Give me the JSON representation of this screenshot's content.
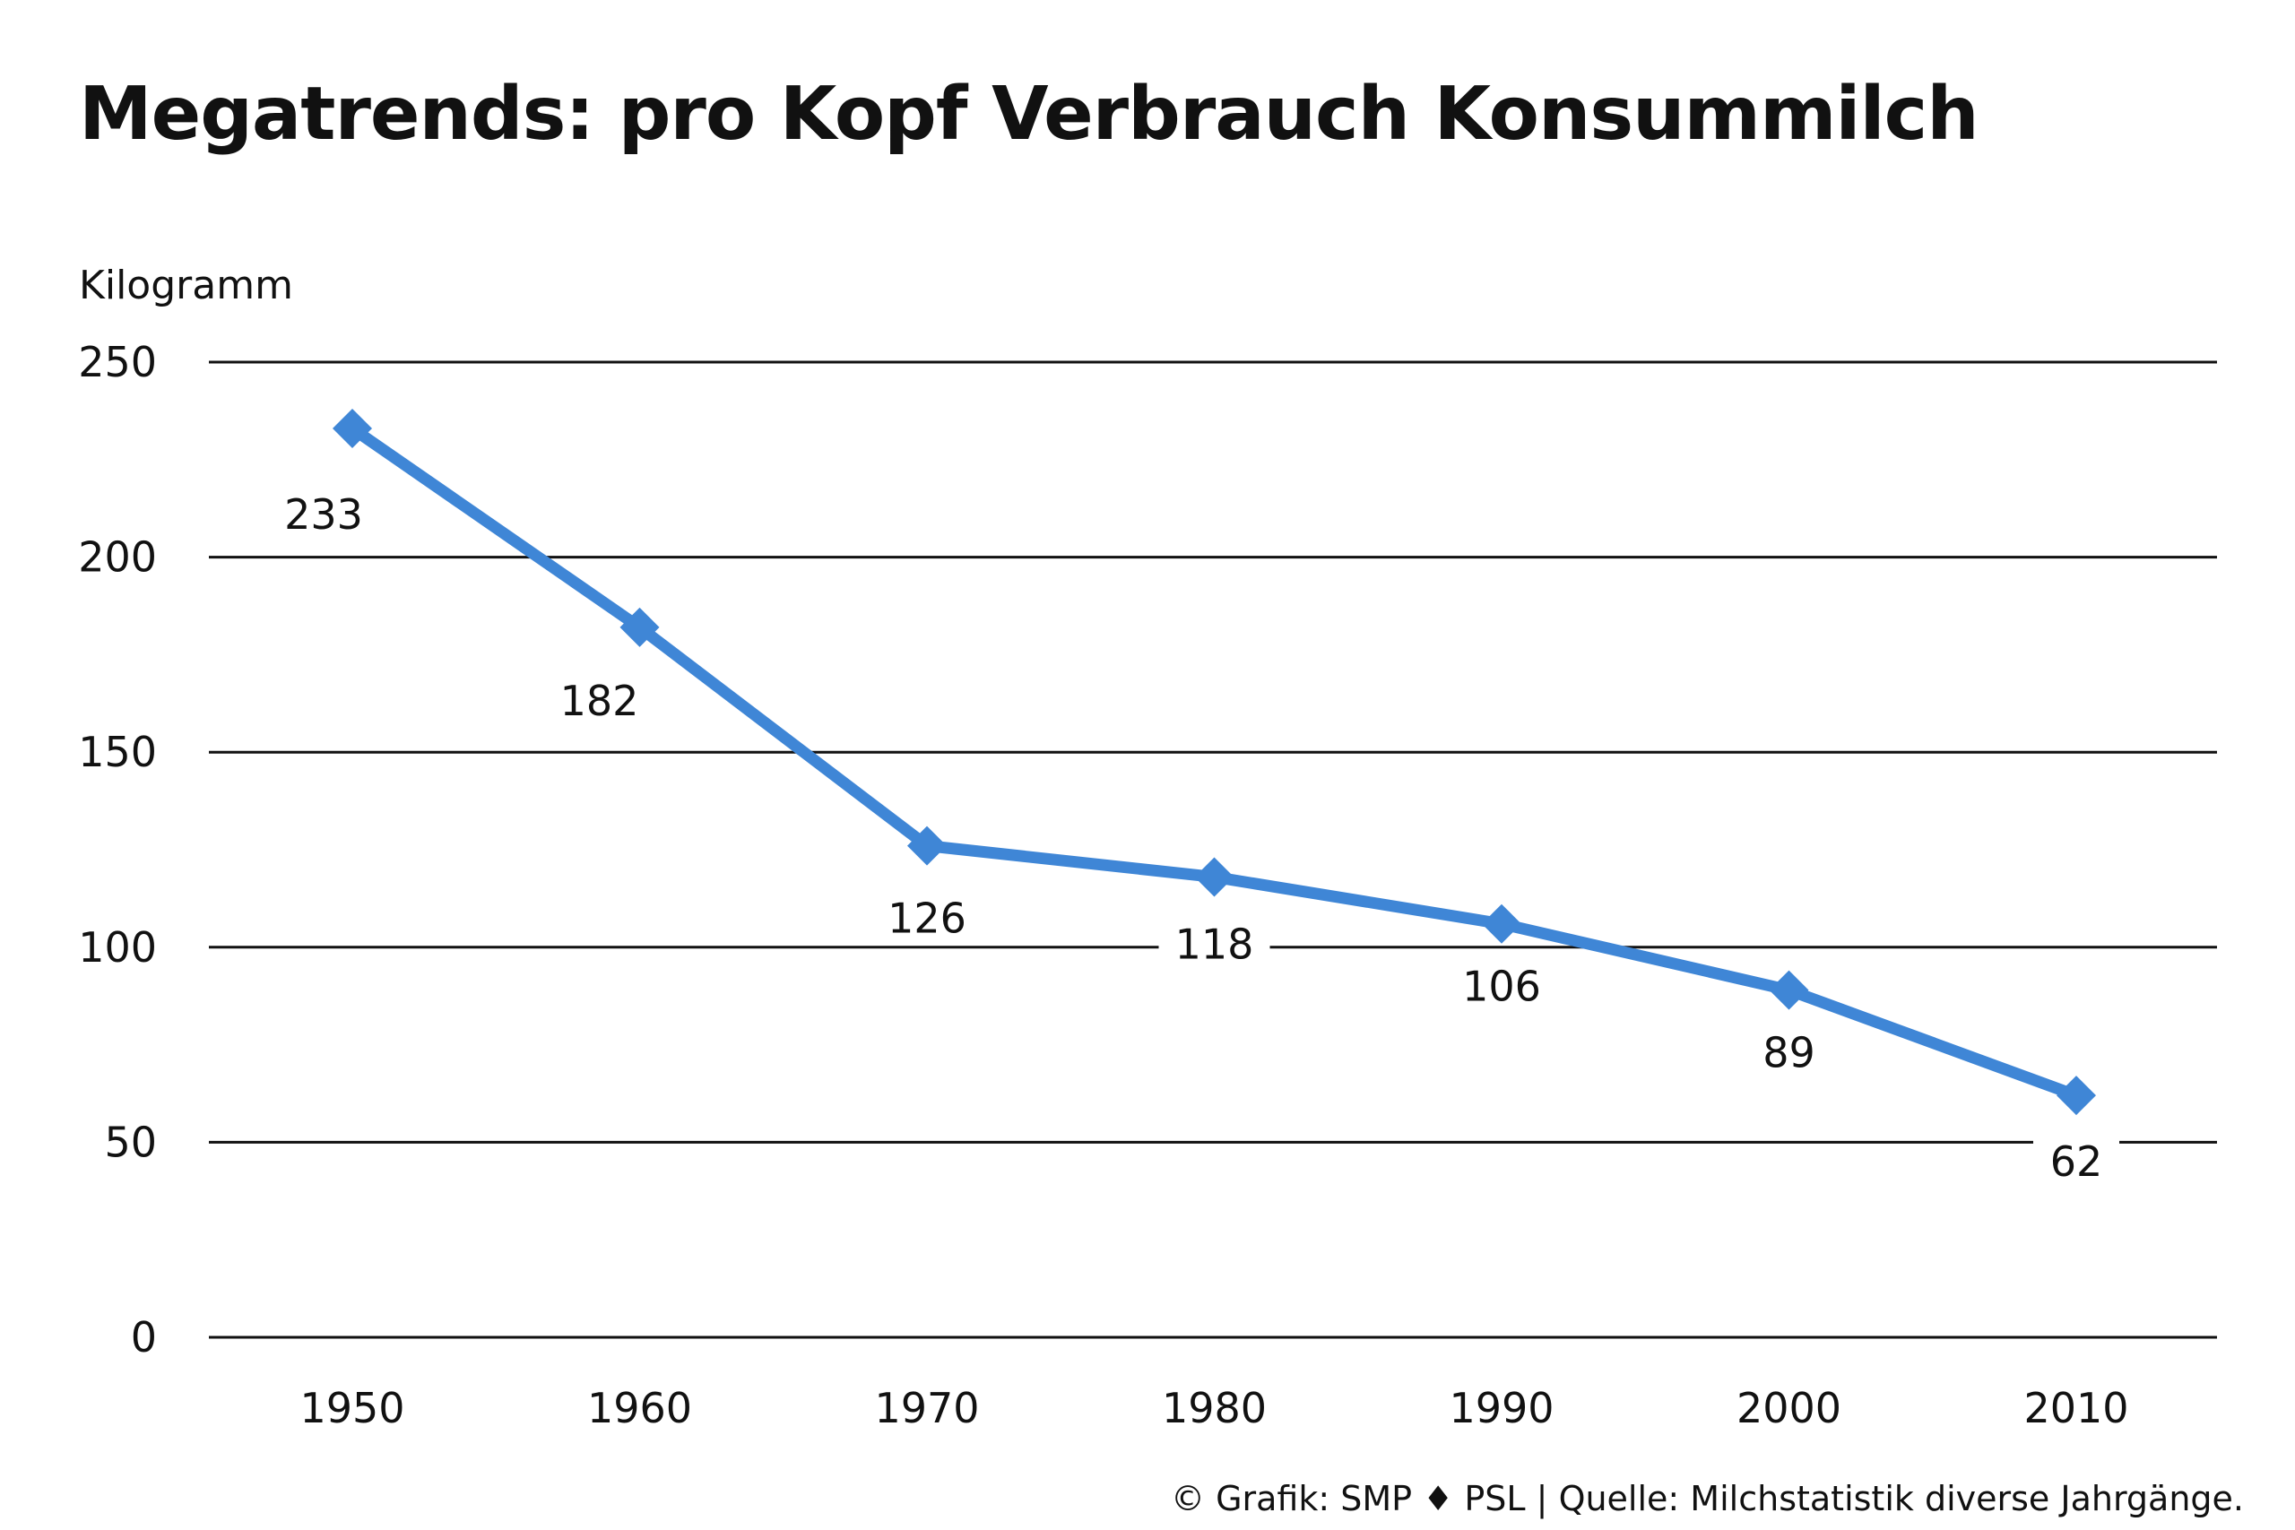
{
  "title": "Megatrends: pro Kopf Verbrauch Konsummilch",
  "footer": {
    "grafik": "© Grafik: SMP",
    "separator_icon": "diamond-icon",
    "org": "PSL",
    "divider": "|",
    "source": "Quelle: Milchstatistik diverse Jahrgänge."
  },
  "colors": {
    "line": "#3f86d6",
    "grid": "#111111",
    "text": "#111111"
  },
  "chart_data": {
    "type": "line",
    "title": "Megatrends: pro Kopf Verbrauch Konsummilch",
    "ylabel": "Kilogramm",
    "xlabel": "",
    "categories": [
      "1950",
      "1960",
      "1970",
      "1980",
      "1990",
      "2000",
      "2010"
    ],
    "series": [
      {
        "values": [
          233,
          182,
          126,
          118,
          106,
          89,
          62
        ]
      }
    ],
    "data_labels": [
      "233",
      "182",
      "126",
      "118",
      "106",
      "89",
      "62"
    ],
    "ylim": [
      0,
      250
    ],
    "yticks": [
      0,
      50,
      100,
      150,
      200,
      250
    ],
    "ytick_labels": [
      "0",
      "50",
      "100",
      "150",
      "200",
      "250"
    ],
    "grid": true,
    "legend": "none",
    "marker": "diamond"
  }
}
